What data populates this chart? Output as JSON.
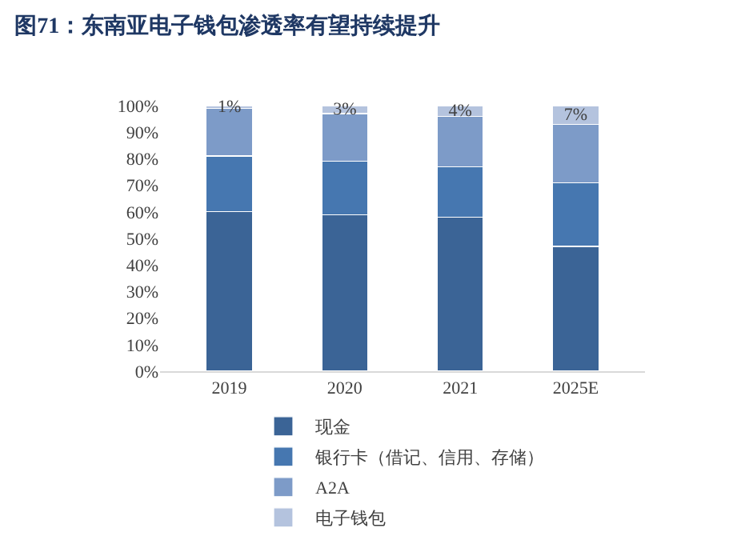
{
  "chart_data": {
    "type": "bar",
    "title": "图71：东南亚电子钱包渗透率有望持续提升",
    "categories": [
      "2019",
      "2020",
      "2021",
      "2025E"
    ],
    "stacked": true,
    "series": [
      {
        "name": "现金",
        "color": "#3b6496",
        "values": [
          60,
          59,
          58,
          47
        ]
      },
      {
        "name": "银行卡（借记、信用、存储）",
        "color": "#4677b0",
        "values": [
          21,
          20,
          19,
          24
        ]
      },
      {
        "name": "A2A",
        "color": "#7d9bc8",
        "values": [
          18,
          18,
          19,
          22
        ]
      },
      {
        "name": "电子钱包",
        "color": "#b4c3de",
        "values": [
          1,
          3,
          4,
          7
        ],
        "value_labels": [
          "1%",
          "3%",
          "4%",
          "7%"
        ]
      }
    ],
    "ylim": [
      0,
      100
    ],
    "yticks": [
      {
        "value": 0,
        "label": "0%"
      },
      {
        "value": 10,
        "label": "10%"
      },
      {
        "value": 20,
        "label": "20%"
      },
      {
        "value": 30,
        "label": "30%"
      },
      {
        "value": 40,
        "label": "40%"
      },
      {
        "value": 50,
        "label": "50%"
      },
      {
        "value": 60,
        "label": "60%"
      },
      {
        "value": 70,
        "label": "70%"
      },
      {
        "value": 80,
        "label": "80%"
      },
      {
        "value": 90,
        "label": "90%"
      },
      {
        "value": 100,
        "label": "100%"
      }
    ],
    "legend": "bottom"
  }
}
